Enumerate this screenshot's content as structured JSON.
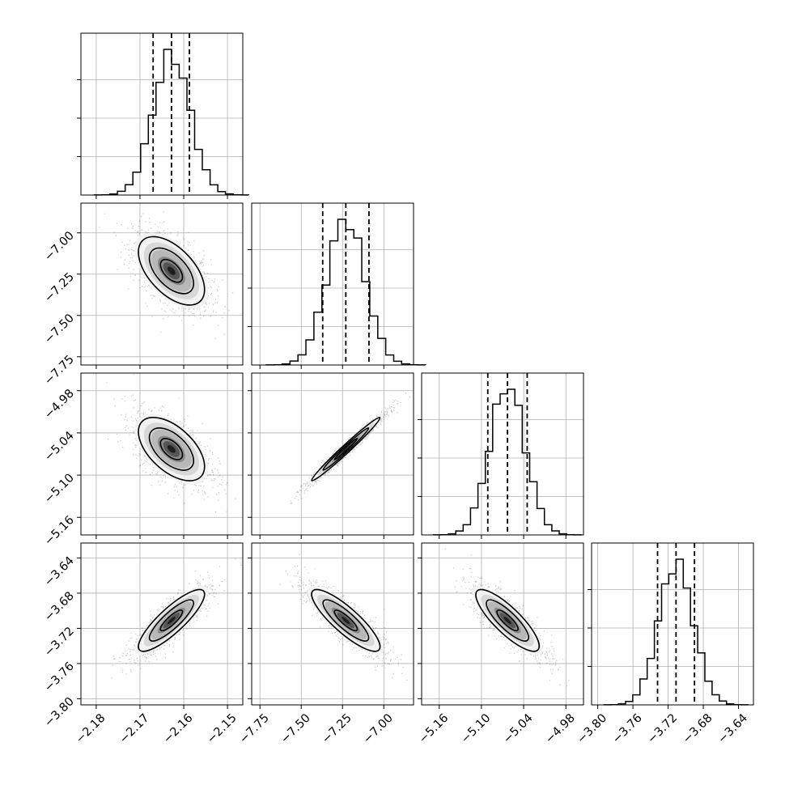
{
  "chart_data": {
    "type": "corner",
    "parameters": [
      {
        "ticks": [
          -2.18,
          -2.17,
          -2.16,
          -2.15
        ],
        "tick_labels": [
          "−2.18",
          "−2.17",
          "−2.16",
          "−2.15"
        ],
        "range": [
          -2.1835,
          -2.1465
        ],
        "mean": -2.1628,
        "sd": 0.0042
      },
      {
        "ticks": [
          -7.75,
          -7.5,
          -7.25,
          -7.0
        ],
        "tick_labels": [
          "−7.75",
          "−7.50",
          "−7.25",
          "−7.00"
        ],
        "range": [
          -7.8,
          -6.82
        ],
        "mean": -7.23,
        "sd": 0.115
      },
      {
        "ticks": [
          -5.16,
          -5.1,
          -5.04,
          -4.98
        ],
        "tick_labels": [
          "−5.16",
          "−5.10",
          "−5.04",
          "−4.98"
        ],
        "range": [
          -5.185,
          -4.955
        ],
        "mean": -5.063,
        "sd": 0.025
      },
      {
        "ticks": [
          -3.8,
          -3.76,
          -3.72,
          -3.68,
          -3.64
        ],
        "tick_labels": [
          "−3.80",
          "−3.76",
          "−3.72",
          "−3.68",
          "−3.64"
        ],
        "range": [
          -3.807,
          -3.623
        ],
        "mean": -3.711,
        "sd": 0.0195
      }
    ],
    "quantiles": [
      {
        "p16": -2.167,
        "p50": -2.1628,
        "p84": -2.1587
      },
      {
        "p16": -7.37,
        "p50": -7.23,
        "p84": -7.09
      },
      {
        "p16": -5.091,
        "p50": -5.063,
        "p84": -5.035
      },
      {
        "p16": -3.732,
        "p50": -3.711,
        "p84": -3.69
      }
    ],
    "correlations": [
      {
        "i": 1,
        "j": 0,
        "r": -0.55
      },
      {
        "i": 2,
        "j": 0,
        "r": -0.55
      },
      {
        "i": 2,
        "j": 1,
        "r": 0.985
      },
      {
        "i": 3,
        "j": 0,
        "r": 0.85
      },
      {
        "i": 3,
        "j": 1,
        "r": -0.85
      },
      {
        "i": 3,
        "j": 2,
        "r": -0.83
      }
    ],
    "hist_bins": 20,
    "contour_levels": [
      0.5,
      1.0,
      1.5
    ],
    "grid": true,
    "title": "",
    "xlabel": "",
    "ylabel": ""
  }
}
